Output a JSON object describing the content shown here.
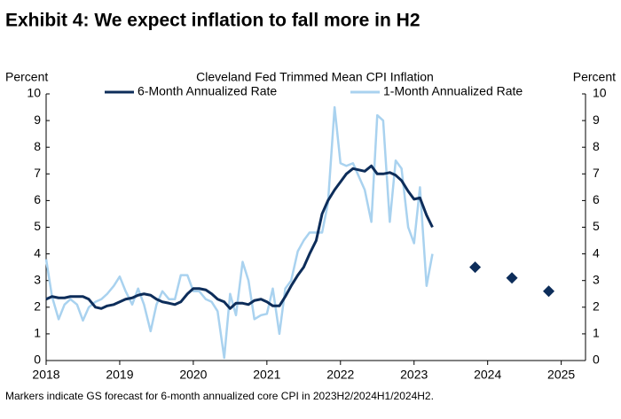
{
  "title": "Exhibit 4: We expect inflation to fall more in H2",
  "chart_data": {
    "type": "line",
    "title": "Cleveland Fed Trimmed Mean CPI Inflation",
    "y_label": "Percent",
    "y2_label": "Percent",
    "note": "Markers indicate GS forecast for 6-month annualized core CPI in 2023H2/2024H1/2024H2.",
    "x": [
      2018,
      2018.08,
      2018.17,
      2018.25,
      2018.33,
      2018.42,
      2018.5,
      2018.58,
      2018.67,
      2018.75,
      2018.83,
      2018.92,
      2019,
      2019.08,
      2019.17,
      2019.25,
      2019.33,
      2019.42,
      2019.5,
      2019.58,
      2019.67,
      2019.75,
      2019.83,
      2019.92,
      2020,
      2020.08,
      2020.17,
      2020.25,
      2020.33,
      2020.42,
      2020.5,
      2020.58,
      2020.67,
      2020.75,
      2020.83,
      2020.92,
      2021,
      2021.08,
      2021.17,
      2021.25,
      2021.33,
      2021.42,
      2021.5,
      2021.58,
      2021.67,
      2021.75,
      2021.83,
      2021.92,
      2022,
      2022.08,
      2022.17,
      2022.25,
      2022.33,
      2022.42,
      2022.5,
      2022.58,
      2022.67,
      2022.75,
      2022.83,
      2022.92,
      2023,
      2023.08,
      2023.17,
      2023.25
    ],
    "series": [
      {
        "name": "6-Month Annualized Rate",
        "color": "#0d2d5a",
        "values": [
          2.3,
          2.4,
          2.35,
          2.35,
          2.4,
          2.4,
          2.4,
          2.3,
          2.0,
          1.95,
          2.05,
          2.1,
          2.2,
          2.3,
          2.35,
          2.45,
          2.5,
          2.45,
          2.3,
          2.2,
          2.15,
          2.1,
          2.2,
          2.5,
          2.7,
          2.7,
          2.65,
          2.5,
          2.3,
          2.2,
          1.95,
          2.15,
          2.15,
          2.1,
          2.25,
          2.3,
          2.2,
          2.05,
          2.05,
          2.4,
          2.8,
          3.2,
          3.5,
          4.0,
          4.5,
          5.5,
          6.0,
          6.4,
          6.7,
          7.0,
          7.2,
          7.15,
          7.1,
          7.3,
          7.0,
          7.0,
          7.05,
          6.95,
          6.75,
          6.35,
          6.05,
          6.1,
          5.45,
          5.0
        ]
      },
      {
        "name": "1-Month Annualized Rate",
        "color": "#a9d2ef",
        "values": [
          3.8,
          2.4,
          1.55,
          2.1,
          2.3,
          2.1,
          1.5,
          2.0,
          2.2,
          2.3,
          2.5,
          2.8,
          3.15,
          2.6,
          2.1,
          2.7,
          2.1,
          1.1,
          2.1,
          2.6,
          2.3,
          2.3,
          3.2,
          3.2,
          2.6,
          2.6,
          2.3,
          2.2,
          1.85,
          0.1,
          2.5,
          1.7,
          3.7,
          3.0,
          1.55,
          1.7,
          1.75,
          2.7,
          1.0,
          2.7,
          3.0,
          4.1,
          4.5,
          4.8,
          4.8,
          4.8,
          5.9,
          9.5,
          7.4,
          7.3,
          7.4,
          6.9,
          6.4,
          5.2,
          9.2,
          9.0,
          5.2,
          7.5,
          7.2,
          5.0,
          4.4,
          6.5,
          2.8,
          4.0
        ]
      }
    ],
    "forecast": {
      "x": [
        2023.83,
        2024.33,
        2024.83
      ],
      "values": [
        3.5,
        3.1,
        2.6
      ],
      "color": "#0d2d5a"
    },
    "xlim": [
      2018,
      2025.33
    ],
    "xticks": [
      2018,
      2019,
      2020,
      2021,
      2022,
      2023,
      2024,
      2025
    ],
    "ylim": [
      0,
      10
    ],
    "yticks": [
      0,
      1,
      2,
      3,
      4,
      5,
      6,
      7,
      8,
      9,
      10
    ],
    "y2lim": [
      0,
      10
    ],
    "y2ticks": [
      0,
      1,
      2,
      3,
      4,
      5,
      6,
      7,
      8,
      9,
      10
    ]
  }
}
